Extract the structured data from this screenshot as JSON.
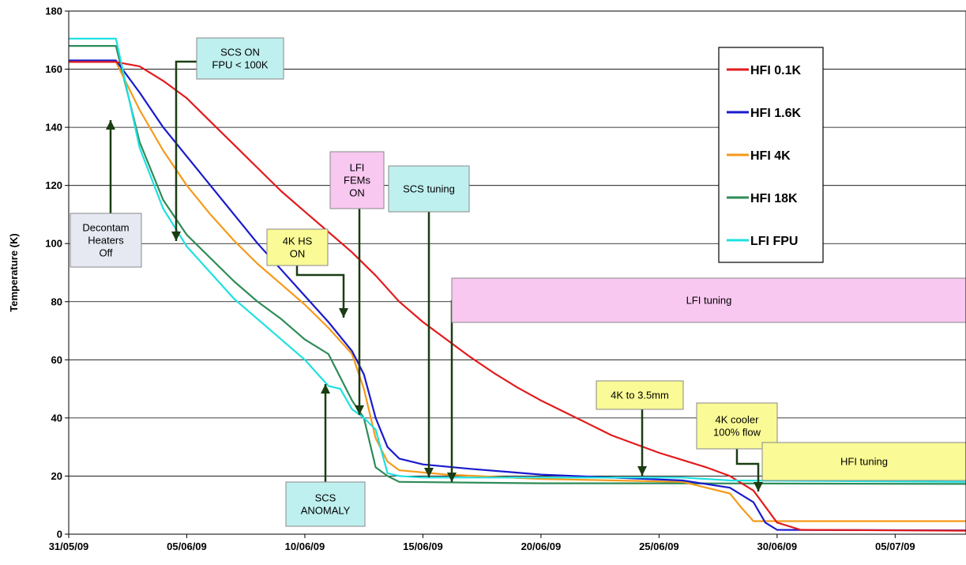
{
  "chart_data": {
    "type": "line",
    "title": "",
    "xlabel": "",
    "ylabel": "Temperature (K)",
    "ylim": [
      0,
      180
    ],
    "xlim": [
      "31/05/09",
      "08/07/09"
    ],
    "grid": "horizontal",
    "legend_position": "top-right",
    "yticks": [
      "0",
      "20",
      "40",
      "60",
      "80",
      "100",
      "120",
      "140",
      "160",
      "180"
    ],
    "xticks": [
      "31/05/09",
      "05/06/09",
      "10/06/09",
      "15/06/09",
      "20/06/09",
      "25/06/09",
      "30/06/09",
      "05/07/09"
    ],
    "series": [
      {
        "name": "HFI 0.1K",
        "color": "#e31a1c",
        "points": [
          [
            "31/05/09",
            162.5
          ],
          [
            "01/06/09",
            162.5
          ],
          [
            "02/06/09",
            162.5
          ],
          [
            "03/06/09",
            161
          ],
          [
            "04/06/09",
            156
          ],
          [
            "05/06/09",
            150
          ],
          [
            "06/06/09",
            142
          ],
          [
            "07/06/09",
            134
          ],
          [
            "08/06/09",
            126
          ],
          [
            "09/06/09",
            118
          ],
          [
            "10/06/09",
            111
          ],
          [
            "11/06/09",
            104
          ],
          [
            "12/06/09",
            97
          ],
          [
            "13/06/09",
            89
          ],
          [
            "14/06/09",
            80
          ],
          [
            "15/06/09",
            73
          ],
          [
            "16/06/09",
            67
          ],
          [
            "17/06/09",
            61
          ],
          [
            "18/06/09",
            55.5
          ],
          [
            "19/06/09",
            50.5
          ],
          [
            "20/06/09",
            46
          ],
          [
            "21/06/09",
            42
          ],
          [
            "22/06/09",
            38
          ],
          [
            "23/06/09",
            34
          ],
          [
            "24/06/09",
            31
          ],
          [
            "25/06/09",
            28
          ],
          [
            "26/06/09",
            25.5
          ],
          [
            "27/06/09",
            23
          ],
          [
            "28/06/09",
            20
          ],
          [
            "29/06/09",
            15
          ],
          [
            "30/06/09",
            4
          ],
          [
            "01/07/09",
            1.5
          ],
          [
            "08/07/09",
            1.2
          ]
        ]
      },
      {
        "name": "HFI 1.6K",
        "color": "#1a1acd",
        "points": [
          [
            "31/05/09",
            163
          ],
          [
            "02/06/09",
            163
          ],
          [
            "03/06/09",
            152
          ],
          [
            "04/06/09",
            140
          ],
          [
            "05/06/09",
            130
          ],
          [
            "06/06/09",
            120
          ],
          [
            "07/06/09",
            110
          ],
          [
            "08/06/09",
            100
          ],
          [
            "09/06/09",
            91
          ],
          [
            "10/06/09",
            82
          ],
          [
            "11/06/09",
            73
          ],
          [
            "12/06/09",
            63
          ],
          [
            "12/06/09",
            55
          ],
          [
            "13/06/09",
            40
          ],
          [
            "13/06/09",
            30
          ],
          [
            "14/06/09",
            26
          ],
          [
            "15/06/09",
            24
          ],
          [
            "17/06/09",
            22.5
          ],
          [
            "20/06/09",
            20.5
          ],
          [
            "23/06/09",
            19.5
          ],
          [
            "26/06/09",
            18.5
          ],
          [
            "28/06/09",
            16
          ],
          [
            "29/06/09",
            11
          ],
          [
            "29/06/09",
            4
          ],
          [
            "30/06/09",
            1.5
          ],
          [
            "08/07/09",
            1.3
          ]
        ]
      },
      {
        "name": "HFI 4K",
        "color": "#f59a1a",
        "points": [
          [
            "31/05/09",
            162.5
          ],
          [
            "02/06/09",
            162.5
          ],
          [
            "03/06/09",
            146
          ],
          [
            "04/06/09",
            132
          ],
          [
            "05/06/09",
            120
          ],
          [
            "06/06/09",
            110
          ],
          [
            "07/06/09",
            101
          ],
          [
            "08/06/09",
            93
          ],
          [
            "09/06/09",
            86
          ],
          [
            "10/06/09",
            79
          ],
          [
            "11/06/09",
            71
          ],
          [
            "12/06/09",
            62
          ],
          [
            "12/06/09",
            50
          ],
          [
            "13/06/09",
            33
          ],
          [
            "13/06/09",
            25
          ],
          [
            "14/06/09",
            22
          ],
          [
            "16/06/09",
            20.5
          ],
          [
            "20/06/09",
            19
          ],
          [
            "26/06/09",
            18
          ],
          [
            "28/06/09",
            14
          ],
          [
            "28/06/09",
            9
          ],
          [
            "29/06/09",
            4.5
          ],
          [
            "08/07/09",
            4.5
          ]
        ]
      },
      {
        "name": "HFI 18K",
        "color": "#2e8b57",
        "points": [
          [
            "31/05/09",
            168
          ],
          [
            "02/06/09",
            168
          ],
          [
            "03/06/09",
            135
          ],
          [
            "04/06/09",
            115
          ],
          [
            "05/06/09",
            103
          ],
          [
            "06/06/09",
            95
          ],
          [
            "07/06/09",
            87
          ],
          [
            "08/06/09",
            80
          ],
          [
            "09/06/09",
            74
          ],
          [
            "10/06/09",
            67
          ],
          [
            "11/06/09",
            62
          ],
          [
            "12/06/09",
            46
          ],
          [
            "12/06/09",
            40
          ],
          [
            "13/06/09",
            23
          ],
          [
            "13/06/09",
            20
          ],
          [
            "14/06/09",
            18
          ],
          [
            "20/06/09",
            17.5
          ],
          [
            "25/06/09",
            17.5
          ],
          [
            "08/07/09",
            17.3
          ]
        ]
      },
      {
        "name": "LFI FPU",
        "color": "#1fe0e0",
        "points": [
          [
            "31/05/09",
            170.5
          ],
          [
            "02/06/09",
            170.5
          ],
          [
            "03/06/09",
            133
          ],
          [
            "04/06/09",
            112
          ],
          [
            "05/06/09",
            99
          ],
          [
            "06/06/09",
            90
          ],
          [
            "07/06/09",
            81
          ],
          [
            "08/06/09",
            74
          ],
          [
            "09/06/09",
            67
          ],
          [
            "10/06/09",
            60
          ],
          [
            "11/06/09",
            51
          ],
          [
            "11/06/09",
            50
          ],
          [
            "12/06/09",
            43
          ],
          [
            "12/06/09",
            40
          ],
          [
            "13/06/09",
            36
          ],
          [
            "13/06/09",
            21
          ],
          [
            "14/06/09",
            20
          ],
          [
            "15/06/09",
            19.5
          ],
          [
            "20/06/09",
            19.5
          ],
          [
            "26/06/09",
            19.5
          ],
          [
            "28/06/09",
            18.5
          ],
          [
            "08/07/09",
            18
          ]
        ]
      }
    ],
    "annotations": [
      {
        "id": "decontam",
        "lines": [
          "Decontam",
          "Heaters",
          "Off"
        ],
        "fill": "#e6e9f2",
        "target": [
          "02/06/09",
          156
        ]
      },
      {
        "id": "scs-on",
        "lines": [
          "SCS ON",
          "FPU < 100K"
        ],
        "fill": "#bff0f0",
        "target": [
          "04/06/09",
          98
        ]
      },
      {
        "id": "lfi-fems",
        "lines": [
          "LFI",
          "FEMs",
          "ON"
        ],
        "fill": "#f8c8f0",
        "target": [
          "12/06/09",
          40
        ]
      },
      {
        "id": "scs-tuning",
        "lines": [
          "SCS tuning"
        ],
        "fill": "#bff0f0",
        "target": [
          "14/06/09",
          19
        ]
      },
      {
        "id": "4k-hs",
        "lines": [
          "4K HS",
          "ON"
        ],
        "fill": "#fafa96",
        "target": [
          "11/06/09",
          68
        ]
      },
      {
        "id": "lfi-tuning",
        "lines": [
          "LFI tuning"
        ],
        "fill": "#f8c8f0",
        "target": [
          "15/06/09",
          18.5
        ]
      },
      {
        "id": "scs-anomaly",
        "lines": [
          "SCS",
          "ANOMALY"
        ],
        "fill": "#bff0f0",
        "target": [
          "10/06/09",
          50
        ]
      },
      {
        "id": "4k-3-5mm",
        "lines": [
          "4K to 3.5mm"
        ],
        "fill": "#fafa96",
        "target": [
          "23/06/09",
          19
        ]
      },
      {
        "id": "4k-cooler",
        "lines": [
          "4K cooler",
          "100% flow"
        ],
        "fill": "#fafa96",
        "target": [
          "28/06/09",
          16
        ]
      },
      {
        "id": "hfi-tuning",
        "lines": [
          "HFI tuning"
        ],
        "fill": "#fafa96",
        "target": null
      }
    ]
  }
}
